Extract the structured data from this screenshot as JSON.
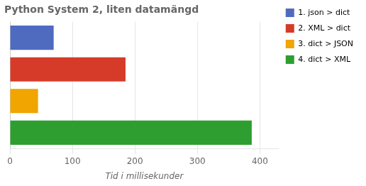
{
  "chart_data": {
    "type": "bar",
    "orientation": "horizontal",
    "title": "Python System 2, liten datamängd",
    "xlabel": "Tid i millisekunder",
    "categories": [
      "1. json > dict",
      "2. XML > dict",
      "3. dict > JSON",
      "4. dict > XML"
    ],
    "values": [
      70,
      185,
      45,
      387
    ],
    "colors": [
      "#4f6bbf",
      "#d63b2a",
      "#f0a500",
      "#2e9e30"
    ],
    "xlim": [
      0,
      430
    ],
    "xticks": [
      0,
      100,
      200,
      300,
      400
    ],
    "grid": true,
    "legend": "upper right",
    "tick_labels": "x"
  }
}
